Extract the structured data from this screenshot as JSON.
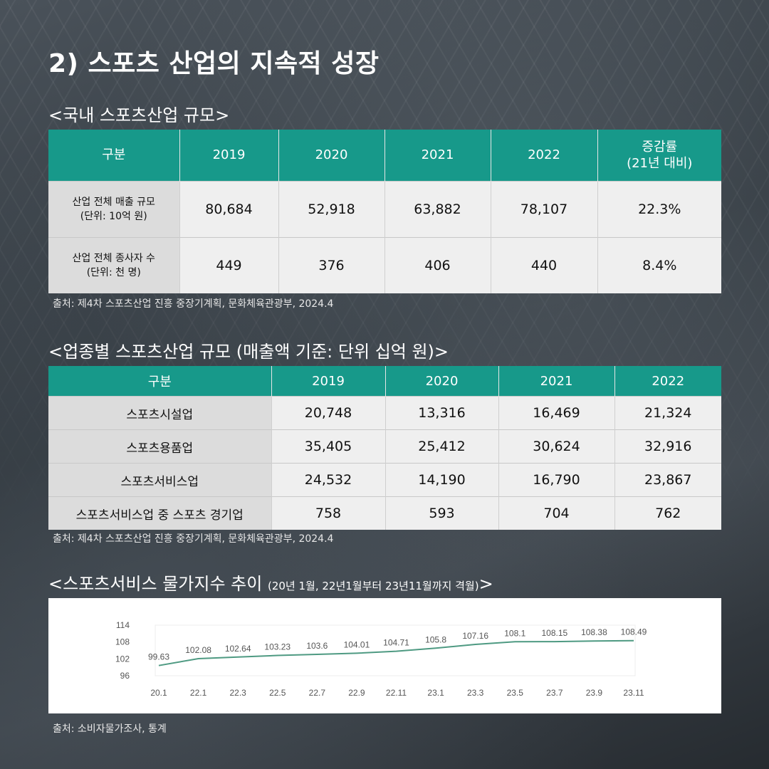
{
  "title": "2) 스포츠 산업의 지속적 성장",
  "section1": {
    "heading": "<국내 스포츠산업 규모>",
    "headers": [
      "구분",
      "2019",
      "2020",
      "2021",
      "2022"
    ],
    "change_header": [
      "증감률",
      "(21년 대비)"
    ],
    "rows": [
      {
        "label": [
          "산업 전체 매출 규모",
          "(단위: 10억 원)"
        ],
        "values": [
          "80,684",
          "52,918",
          "63,882",
          "78,107",
          "22.3%"
        ]
      },
      {
        "label": [
          "산업 전체 종사자 수",
          "(단위: 천 명)"
        ],
        "values": [
          "449",
          "376",
          "406",
          "440",
          "8.4%"
        ]
      }
    ],
    "source": "출처: 제4차 스포츠산업 진흥 중장기계획, 문화체육관광부, 2024.4"
  },
  "section2": {
    "heading": "<업종별 스포츠산업 규모 (매출액 기준: 단위 십억 원)>",
    "headers": [
      "구분",
      "2019",
      "2020",
      "2021",
      "2022"
    ],
    "rows": [
      {
        "label": "스포츠시설업",
        "values": [
          "20,748",
          "13,316",
          "16,469",
          "21,324"
        ]
      },
      {
        "label": "스포츠용품업",
        "values": [
          "35,405",
          "25,412",
          "30,624",
          "32,916"
        ]
      },
      {
        "label": "스포츠서비스업",
        "values": [
          "24,532",
          "14,190",
          "16,790",
          "23,867"
        ]
      },
      {
        "label": "스포츠서비스업 중 스포츠 경기업",
        "values": [
          "758",
          "593",
          "704",
          "762"
        ]
      }
    ],
    "source": "출처: 제4차 스포츠산업 진흥 중장기계획, 문화체육관광부, 2024.4"
  },
  "section3": {
    "heading": "<스포츠서비스 물가지수 추이",
    "heading_note": "(20년 1월, 22년1월부터 23년11월까지 격월)",
    "heading_end": ">",
    "source": "출처: 소비자물가조사, 통계"
  },
  "colors": {
    "accent": "#17998a",
    "line": "#4e9a82"
  },
  "chart_data": {
    "type": "line",
    "title": "",
    "xlabel": "",
    "ylabel": "",
    "categories": [
      "20.1",
      "22.1",
      "22.3",
      "22.5",
      "22.7",
      "22.9",
      "22.11",
      "23.1",
      "23.3",
      "23.5",
      "23.7",
      "23.9",
      "23.11"
    ],
    "series": [
      {
        "values": [
          99.63,
          102.08,
          102.64,
          103.23,
          103.6,
          104.01,
          104.71,
          105.8,
          107.16,
          108.1,
          108.15,
          108.38,
          108.49
        ]
      }
    ],
    "labels": [
      "99.63",
      "102.08",
      "102.64",
      "103.23",
      "103.6",
      "104.01",
      "104.71",
      "105.8",
      "107.16",
      "108.1",
      "108.15",
      "108.38",
      "108.49"
    ],
    "yticks": [
      "96",
      "102",
      "108",
      "114"
    ],
    "ylim": [
      96,
      114
    ],
    "grid": false,
    "legend": "none"
  }
}
